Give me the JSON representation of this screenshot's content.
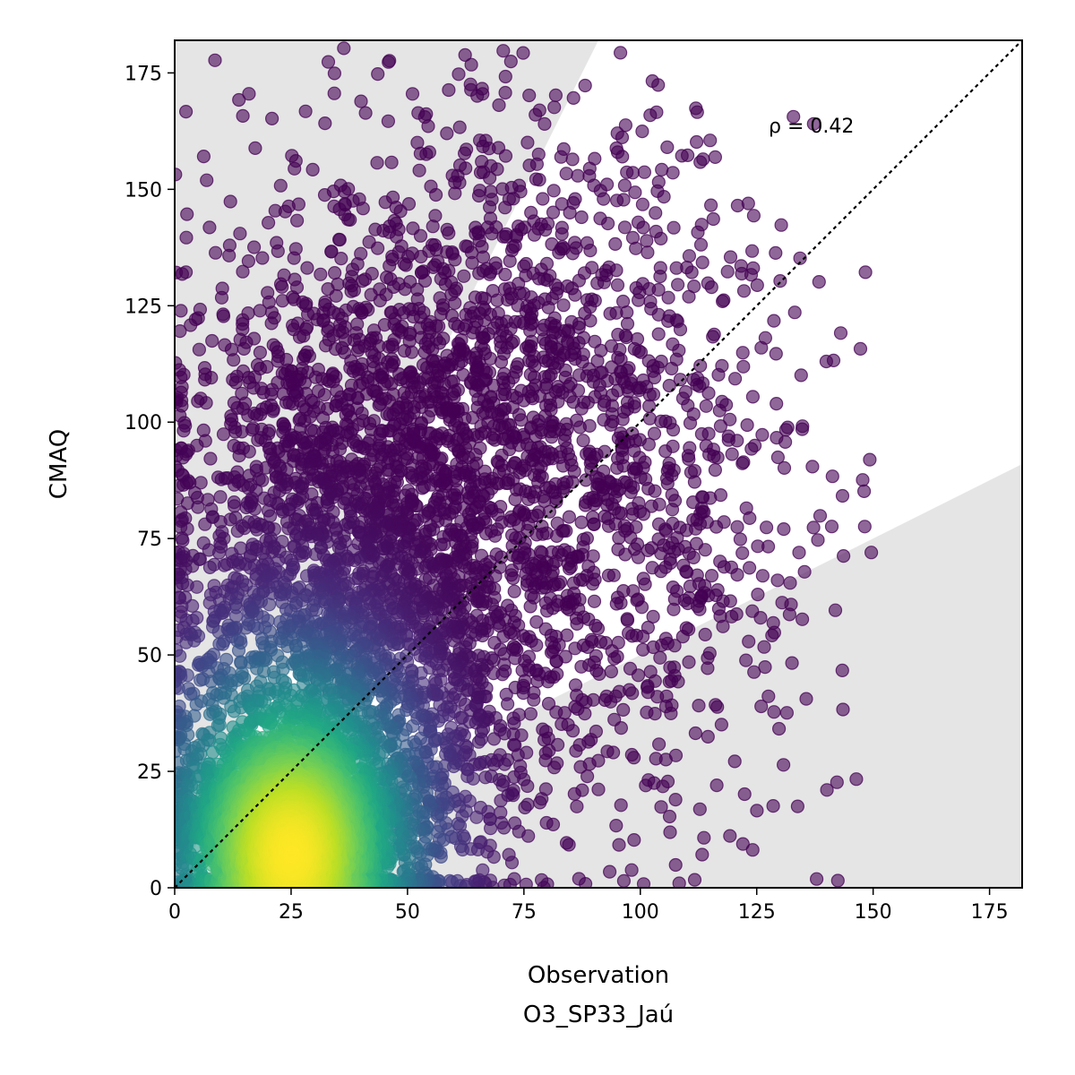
{
  "chart_data": {
    "type": "scatter",
    "title": "",
    "xlabel": "Observation",
    "xlabel_sub": "O3_SP33_Jaú",
    "ylabel": "CMAQ",
    "xlim": [
      0,
      182
    ],
    "ylim": [
      0,
      182
    ],
    "xticks": [
      0,
      25,
      50,
      75,
      100,
      125,
      150,
      175
    ],
    "yticks": [
      0,
      25,
      50,
      75,
      100,
      125,
      150,
      175
    ],
    "annotation": "ρ = 0.42",
    "correlation": 0.42,
    "reference_line": "y = x (dotted)",
    "shaded_regions": [
      {
        "description": "above y = 2x",
        "color": "#e5e5e5"
      },
      {
        "description": "below y = 0.5x",
        "color": "#e5e5e5"
      }
    ],
    "colormap": "viridis (point density)",
    "density_peak": {
      "x": 25,
      "y": 7
    },
    "point_count_approx": 8000,
    "grid": false,
    "legend": "none"
  }
}
